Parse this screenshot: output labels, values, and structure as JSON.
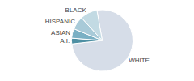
{
  "chart_data": {
    "type": "pie",
    "categories": [
      "WHITE",
      "A.I.",
      "ASIAN",
      "HISPANIC",
      "BLACK"
    ],
    "values": [
      76,
      3,
      5,
      7,
      9
    ],
    "colors": [
      "#d6dde8",
      "#4d8fa3",
      "#7ab0c4",
      "#a8cad8",
      "#c2dae3"
    ]
  }
}
